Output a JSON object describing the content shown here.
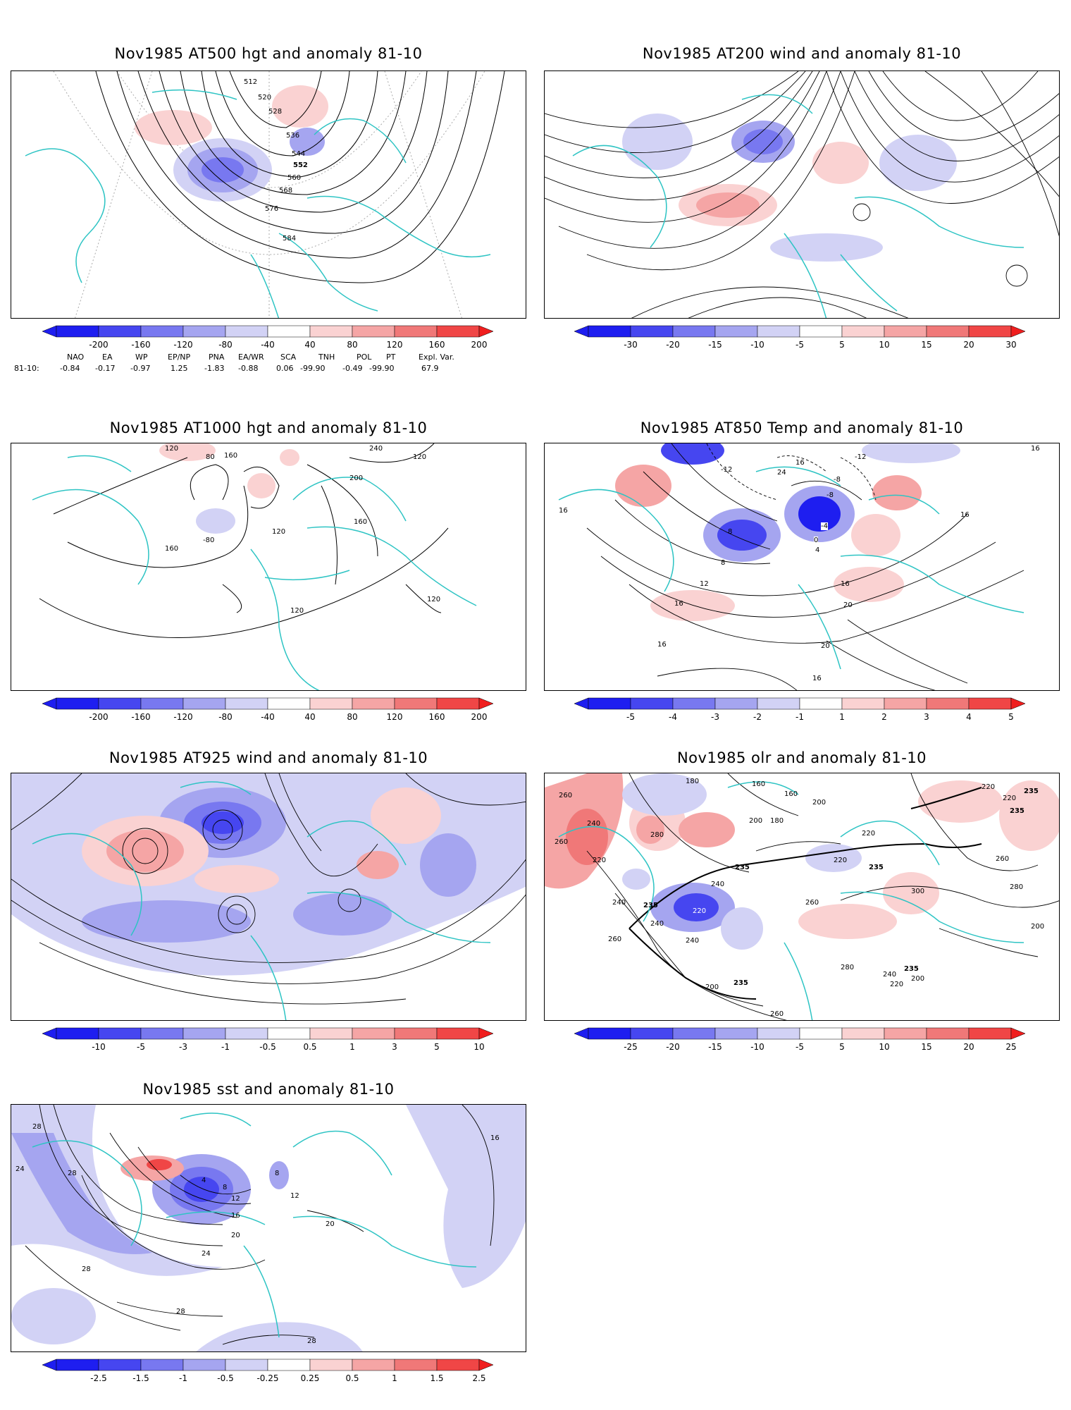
{
  "panels": [
    {
      "id": "p500",
      "title": "Nov1985 AT500 hgt and anomaly 81-10",
      "colorbar": [
        "-200",
        "-160",
        "-120",
        "-80",
        "-40",
        "40",
        "80",
        "120",
        "160",
        "200"
      ],
      "contour_labels": [
        "512",
        "520",
        "528",
        "536",
        "544",
        "552",
        "560",
        "568",
        "576",
        "584"
      ],
      "teleconnections": {
        "row_label": "81-10:",
        "headers": [
          "NAO",
          "EA",
          "WP",
          "EP/NP",
          "PNA",
          "EA/WR",
          "SCA",
          "TNH",
          "POL",
          "PT",
          "Expl. Var."
        ],
        "values": [
          "-0.84",
          "-0.17",
          "-0.97",
          "1.25",
          "-1.83",
          "-0.88",
          "0.06",
          "-99.90",
          "-0.49",
          "-99.90",
          "67.9"
        ]
      }
    },
    {
      "id": "p200",
      "title": "Nov1985 AT200 wind and anomaly 81-10",
      "colorbar": [
        "-30",
        "-20",
        "-15",
        "-10",
        "-5",
        "5",
        "10",
        "15",
        "20",
        "30"
      ],
      "contour_labels": []
    },
    {
      "id": "p1000",
      "title": "Nov1985 AT1000 hgt and anomaly 81-10",
      "colorbar": [
        "-200",
        "-160",
        "-120",
        "-80",
        "-40",
        "40",
        "80",
        "120",
        "160",
        "200"
      ],
      "contour_labels": [
        "120",
        "160",
        "80",
        "240",
        "200",
        "120",
        "160",
        "120",
        "-80",
        "160",
        "120",
        "120"
      ]
    },
    {
      "id": "p850",
      "title": "Nov1985 AT850 Temp and anomaly 81-10",
      "colorbar": [
        "-5",
        "-4",
        "-3",
        "-2",
        "-1",
        "1",
        "2",
        "3",
        "4",
        "5"
      ],
      "contour_labels": [
        "16",
        "16",
        "-12",
        "-12",
        "16",
        "24",
        "-8",
        "8",
        "-4",
        "0",
        "4",
        "8",
        "16",
        "12",
        "16",
        "16",
        "20",
        "20",
        "16",
        "16",
        "-8"
      ]
    },
    {
      "id": "p925",
      "title": "Nov1985 AT925 wind and anomaly 81-10",
      "colorbar": [
        "-10",
        "-5",
        "-3",
        "-1",
        "-0.5",
        "0.5",
        "1",
        "3",
        "5",
        "10"
      ],
      "contour_labels": []
    },
    {
      "id": "polr",
      "title": "Nov1985 olr and anomaly 81-10",
      "colorbar": [
        "-25",
        "-20",
        "-15",
        "-10",
        "-5",
        "5",
        "10",
        "15",
        "20",
        "25"
      ],
      "contour_labels": [
        "260",
        "180",
        "160",
        "160",
        "200",
        "235",
        "220",
        "235",
        "240",
        "260",
        "280",
        "200",
        "180",
        "220",
        "235",
        "235",
        "220",
        "220",
        "240",
        "260",
        "300",
        "280",
        "260",
        "240",
        "220",
        "235",
        "200",
        "220",
        "240",
        "235",
        "200",
        "240",
        "260",
        "260",
        "280",
        "240",
        "220",
        "200",
        "235"
      ]
    },
    {
      "id": "psst",
      "title": "Nov1985 sst and anomaly 81-10",
      "colorbar": [
        "-2.5",
        "-1.5",
        "-1",
        "-0.5",
        "-0.25",
        "0.25",
        "0.5",
        "1",
        "1.5",
        "2.5"
      ],
      "contour_labels": [
        "28",
        "24",
        "28",
        "4",
        "8",
        "12",
        "16",
        "20",
        "24",
        "28",
        "28",
        "28",
        "20",
        "12",
        "8",
        "16"
      ]
    }
  ],
  "colors": {
    "map_lines": "#2ec4c4",
    "contour": "#000000",
    "neg": [
      "#1e1ef0",
      "#4646f0",
      "#7878f0",
      "#a5a5f0",
      "#d2d2f5"
    ],
    "pos": [
      "#fad2d2",
      "#f5a5a5",
      "#f07878",
      "#f04646",
      "#f01e1e"
    ]
  }
}
